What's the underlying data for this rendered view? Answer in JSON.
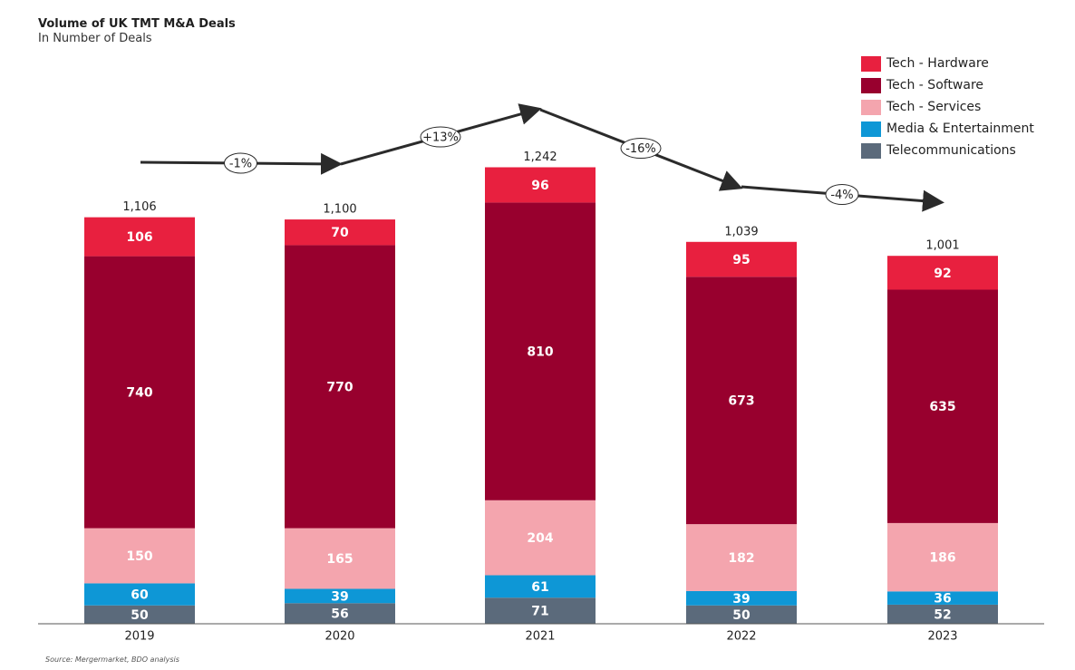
{
  "title": "Volume of UK TMT M&A Deals",
  "subtitle": "In Number of Deals",
  "source": "Source: Mergermarket, BDO analysis",
  "chart_data": {
    "type": "bar",
    "stacked": true,
    "title": "Volume of UK TMT M&A Deals",
    "subtitle": "In Number of Deals",
    "categories": [
      "2019",
      "2020",
      "2021",
      "2022",
      "2023"
    ],
    "series": [
      {
        "name": "Telecommunications",
        "color": "#5b6a7b",
        "values": [
          50,
          56,
          71,
          50,
          52
        ]
      },
      {
        "name": "Media & Entertainment",
        "color": "#0e97d6",
        "values": [
          60,
          39,
          61,
          39,
          36
        ]
      },
      {
        "name": "Tech - Services",
        "color": "#f4a5ae",
        "values": [
          150,
          165,
          204,
          182,
          186
        ]
      },
      {
        "name": "Tech - Software",
        "color": "#98002e",
        "values": [
          740,
          770,
          810,
          673,
          635
        ]
      },
      {
        "name": "Tech - Hardware",
        "color": "#e8203f",
        "values": [
          106,
          70,
          96,
          95,
          92
        ]
      }
    ],
    "totals": [
      "1,106",
      "1,100",
      "1,242",
      "1,039",
      "1,001"
    ],
    "growth_labels": [
      "-1%",
      "+13%",
      "-16%",
      "-4%"
    ],
    "legend_position": "top-right",
    "grid": false
  }
}
